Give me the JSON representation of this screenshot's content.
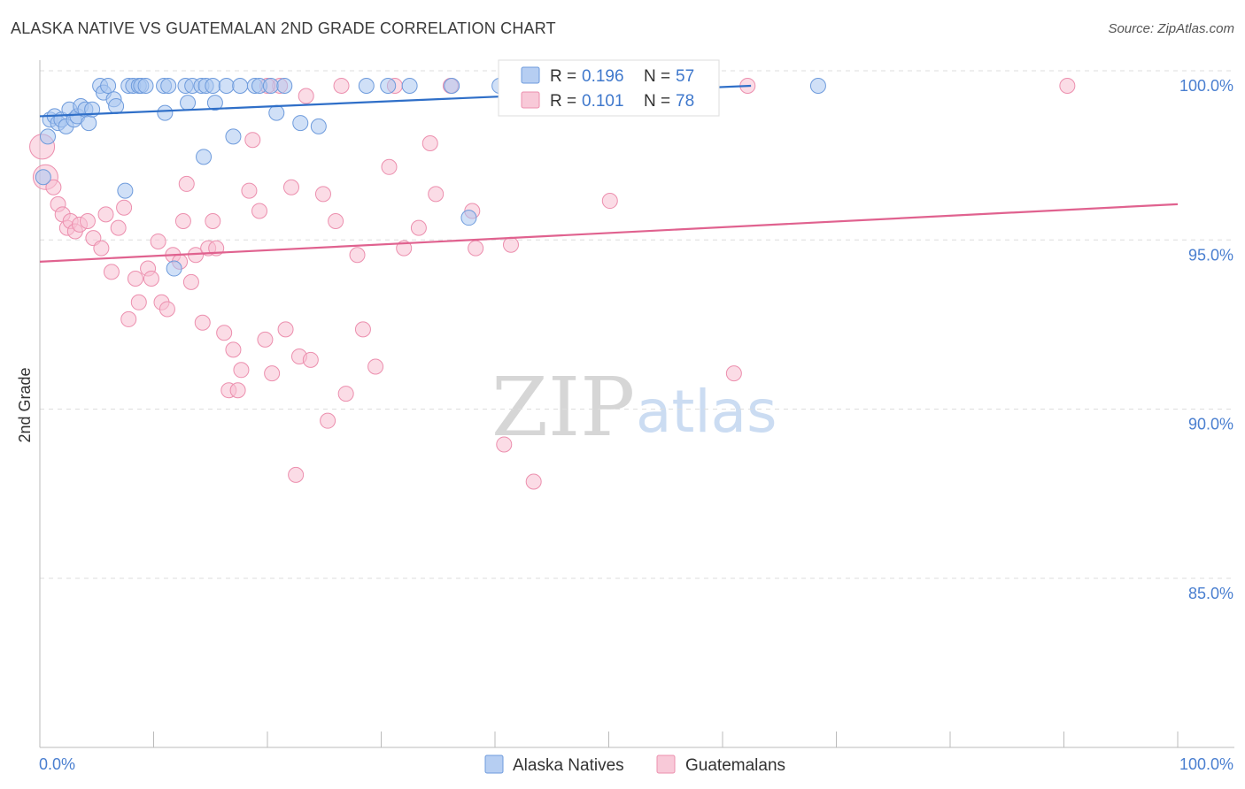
{
  "header": {
    "title": "ALASKA NATIVE VS GUATEMALAN 2ND GRADE CORRELATION CHART",
    "source": "Source: ZipAtlas.com"
  },
  "watermark": {
    "zip": "ZIP",
    "atlas": "atlas"
  },
  "colors": {
    "alaska_fill": "#a9c6f0",
    "alaska_stroke": "#6e9bdc",
    "alaska_line": "#2f6fc8",
    "guatemalan_fill": "#f7bfd1",
    "guatemalan_stroke": "#ec8fae",
    "guatemalan_line": "#e0628f",
    "tick_label": "#4a7fd0",
    "grid": "#dddddd"
  },
  "chart_data": {
    "type": "scatter",
    "title": "ALASKA NATIVE VS GUATEMALAN 2ND GRADE CORRELATION CHART",
    "xlabel": "",
    "ylabel": "2nd Grade",
    "xlim": [
      0,
      100
    ],
    "ylim": [
      80.5,
      100.8
    ],
    "x_tick_labels": {
      "left": "0.0%",
      "right": "100.0%"
    },
    "y_ticks": [
      {
        "value": 100,
        "label": "100.0%"
      },
      {
        "value": 95,
        "label": "95.0%"
      },
      {
        "value": 90,
        "label": "90.0%"
      },
      {
        "value": 85,
        "label": "85.0%"
      }
    ],
    "grid": "horizontal dashed",
    "legend_position": "top-center",
    "series": [
      {
        "name": "Alaska Natives",
        "R": "0.196",
        "N": "57",
        "trend": {
          "x": [
            0,
            62.5
          ],
          "y": [
            99.1,
            100.0
          ]
        },
        "points": [
          [
            0.3,
            97.3
          ],
          [
            0.7,
            98.5
          ],
          [
            0.9,
            99.0
          ],
          [
            1.3,
            99.1
          ],
          [
            1.6,
            98.9
          ],
          [
            1.9,
            99.0
          ],
          [
            2.3,
            98.8
          ],
          [
            2.6,
            99.3
          ],
          [
            3.0,
            99.0
          ],
          [
            3.3,
            99.1
          ],
          [
            3.6,
            99.4
          ],
          [
            4.0,
            99.3
          ],
          [
            4.3,
            98.9
          ],
          [
            4.6,
            99.3
          ],
          [
            5.3,
            100.0
          ],
          [
            5.6,
            99.8
          ],
          [
            6.0,
            100.0
          ],
          [
            6.5,
            99.6
          ],
          [
            6.7,
            99.4
          ],
          [
            7.8,
            100.0
          ],
          [
            8.2,
            100.0
          ],
          [
            8.7,
            100.0
          ],
          [
            8.9,
            100.0
          ],
          [
            9.3,
            100.0
          ],
          [
            10.9,
            100.0
          ],
          [
            11.0,
            99.2
          ],
          [
            11.3,
            100.0
          ],
          [
            12.8,
            100.0
          ],
          [
            13.0,
            99.5
          ],
          [
            13.4,
            100.0
          ],
          [
            14.2,
            100.0
          ],
          [
            14.6,
            100.0
          ],
          [
            15.2,
            100.0
          ],
          [
            15.4,
            99.5
          ],
          [
            16.4,
            100.0
          ],
          [
            17.0,
            98.5
          ],
          [
            17.6,
            100.0
          ],
          [
            18.9,
            100.0
          ],
          [
            19.3,
            100.0
          ],
          [
            20.3,
            100.0
          ],
          [
            20.8,
            99.2
          ],
          [
            21.5,
            100.0
          ],
          [
            22.9,
            98.9
          ],
          [
            24.5,
            98.8
          ],
          [
            28.7,
            100.0
          ],
          [
            30.6,
            100.0
          ],
          [
            32.5,
            100.0
          ],
          [
            36.2,
            100.0
          ],
          [
            37.7,
            96.1
          ],
          [
            41.0,
            100.0
          ],
          [
            46.0,
            100.0
          ],
          [
            58.5,
            100.0
          ],
          [
            68.4,
            100.0
          ],
          [
            7.5,
            96.9
          ],
          [
            14.4,
            97.9
          ],
          [
            11.8,
            94.6
          ],
          [
            40.4,
            100.0
          ]
        ]
      },
      {
        "name": "Guatemalans",
        "R": "0.101",
        "N": "78",
        "trend": {
          "x": [
            0,
            100
          ],
          "y": [
            94.8,
            96.5
          ]
        },
        "points": [
          [
            0.2,
            98.2
          ],
          [
            0.5,
            97.3
          ],
          [
            1.2,
            97.0
          ],
          [
            1.6,
            96.5
          ],
          [
            2.0,
            96.2
          ],
          [
            2.4,
            95.8
          ],
          [
            2.7,
            96.0
          ],
          [
            3.1,
            95.7
          ],
          [
            3.5,
            95.9
          ],
          [
            4.2,
            96.0
          ],
          [
            4.7,
            95.5
          ],
          [
            5.4,
            95.2
          ],
          [
            5.8,
            96.2
          ],
          [
            6.3,
            94.5
          ],
          [
            6.9,
            95.8
          ],
          [
            7.4,
            96.4
          ],
          [
            7.8,
            93.1
          ],
          [
            8.4,
            94.3
          ],
          [
            8.7,
            93.6
          ],
          [
            9.5,
            94.6
          ],
          [
            9.8,
            94.3
          ],
          [
            10.4,
            95.4
          ],
          [
            10.7,
            93.6
          ],
          [
            11.2,
            93.4
          ],
          [
            11.7,
            95.0
          ],
          [
            12.3,
            94.8
          ],
          [
            12.6,
            96.0
          ],
          [
            12.9,
            97.1
          ],
          [
            13.3,
            94.2
          ],
          [
            13.7,
            95.0
          ],
          [
            14.3,
            93.0
          ],
          [
            14.8,
            95.2
          ],
          [
            15.2,
            96.0
          ],
          [
            15.5,
            95.2
          ],
          [
            16.2,
            92.7
          ],
          [
            16.6,
            91.0
          ],
          [
            17.0,
            92.2
          ],
          [
            17.4,
            91.0
          ],
          [
            17.7,
            91.6
          ],
          [
            18.4,
            96.9
          ],
          [
            18.7,
            98.4
          ],
          [
            19.3,
            96.3
          ],
          [
            19.8,
            92.5
          ],
          [
            20.4,
            91.5
          ],
          [
            21.1,
            100.0
          ],
          [
            21.6,
            92.8
          ],
          [
            22.1,
            97.0
          ],
          [
            22.5,
            88.5
          ],
          [
            22.8,
            92.0
          ],
          [
            23.4,
            99.7
          ],
          [
            23.8,
            91.9
          ],
          [
            24.9,
            96.8
          ],
          [
            25.3,
            90.1
          ],
          [
            26.0,
            96.0
          ],
          [
            26.5,
            100.0
          ],
          [
            26.9,
            90.9
          ],
          [
            27.9,
            95.0
          ],
          [
            28.4,
            92.8
          ],
          [
            29.5,
            91.7
          ],
          [
            30.7,
            97.6
          ],
          [
            31.2,
            100.0
          ],
          [
            32.0,
            95.2
          ],
          [
            33.3,
            95.8
          ],
          [
            34.3,
            98.3
          ],
          [
            34.8,
            96.8
          ],
          [
            36.1,
            100.0
          ],
          [
            38.0,
            96.3
          ],
          [
            38.3,
            95.2
          ],
          [
            40.8,
            89.4
          ],
          [
            41.4,
            95.3
          ],
          [
            43.4,
            88.3
          ],
          [
            50.1,
            96.6
          ],
          [
            55.1,
            100.0
          ],
          [
            57.0,
            100.0
          ],
          [
            61.0,
            91.5
          ],
          [
            62.2,
            100.0
          ],
          [
            90.3,
            100.0
          ],
          [
            20.0,
            100.0
          ]
        ]
      }
    ]
  },
  "legend": {
    "r_label": "R =",
    "n_label": "N =",
    "bottom": [
      {
        "name": "Alaska Natives"
      },
      {
        "name": "Guatemalans"
      }
    ]
  }
}
